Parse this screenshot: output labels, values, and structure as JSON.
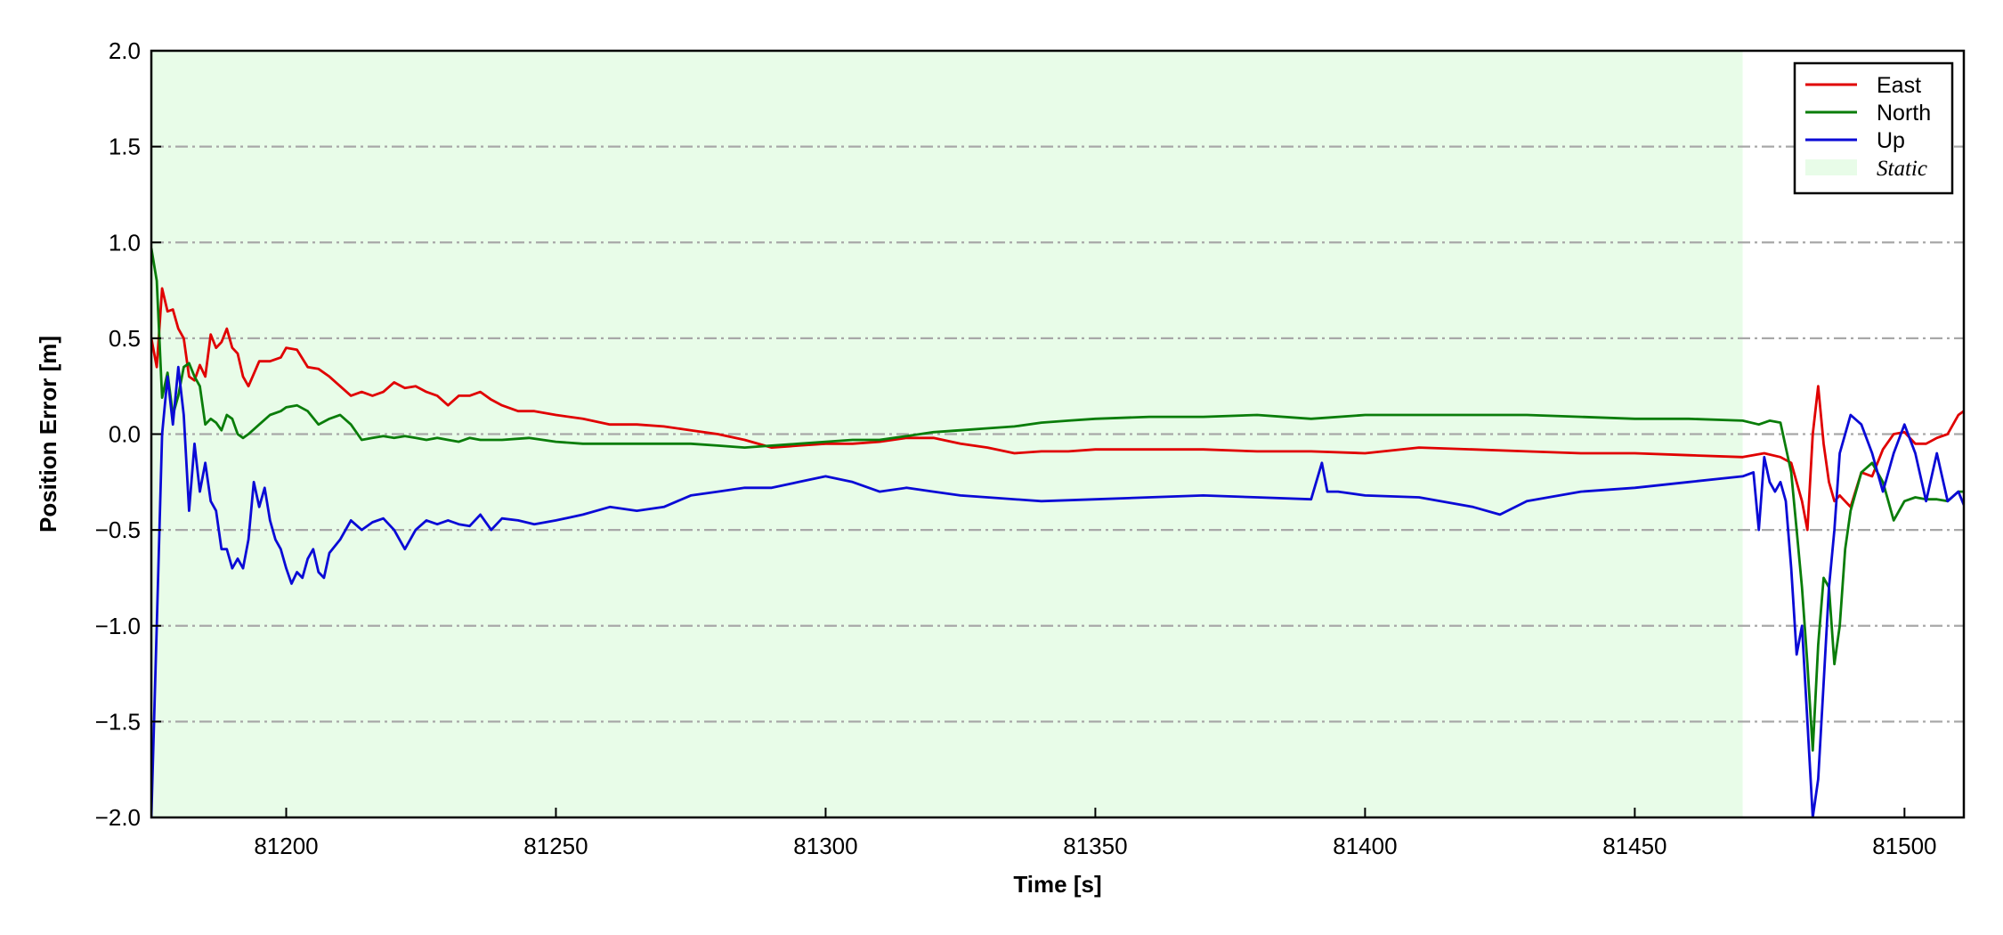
{
  "chart_data": {
    "type": "line",
    "title": "",
    "xlabel": "Time [s]",
    "ylabel": "Position Error [m]",
    "xlim": [
      81175,
      81511
    ],
    "ylim": [
      -2.0,
      2.0
    ],
    "xticks": [
      81200,
      81250,
      81300,
      81350,
      81400,
      81450,
      81500
    ],
    "xtick_labels": [
      "81200",
      "81250",
      "81300",
      "81350",
      "81400",
      "81450",
      "81500"
    ],
    "yticks": [
      2.0,
      1.5,
      1.0,
      0.5,
      0.0,
      -0.5,
      -1.0,
      -1.5,
      -2.0
    ],
    "ytick_labels": [
      "2.0",
      "1.5",
      "1.0",
      "0.5",
      "0.0",
      "−0.5",
      "−1.0",
      "−1.5",
      "−2.0"
    ],
    "grid": "horizontal dash-dot",
    "legend_position": "top-right",
    "static_region": {
      "label": "Static",
      "x_start": 81175,
      "x_end": 81470,
      "color": "#e8fce8"
    },
    "series": [
      {
        "name": "East",
        "color": "#e00000",
        "x": [
          81175,
          81176,
          81177,
          81178,
          81179,
          81180,
          81181,
          81182,
          81183,
          81184,
          81185,
          81186,
          81187,
          81188,
          81189,
          81190,
          81191,
          81192,
          81193,
          81195,
          81197,
          81199,
          81200,
          81202,
          81204,
          81206,
          81208,
          81210,
          81212,
          81214,
          81216,
          81218,
          81220,
          81222,
          81224,
          81226,
          81228,
          81230,
          81232,
          81234,
          81236,
          81238,
          81240,
          81243,
          81246,
          81250,
          81255,
          81260,
          81265,
          81270,
          81275,
          81280,
          81285,
          81290,
          81295,
          81300,
          81305,
          81310,
          81315,
          81320,
          81325,
          81330,
          81335,
          81340,
          81345,
          81350,
          81360,
          81370,
          81380,
          81390,
          81400,
          81410,
          81420,
          81430,
          81440,
          81450,
          81460,
          81470,
          81474,
          81477,
          81479,
          81481,
          81482,
          81483,
          81484,
          81485,
          81486,
          81487,
          81488,
          81490,
          81492,
          81494,
          81496,
          81498,
          81500,
          81502,
          81504,
          81506,
          81508,
          81510,
          81511
        ],
        "y": [
          0.5,
          0.35,
          0.76,
          0.64,
          0.65,
          0.55,
          0.5,
          0.3,
          0.28,
          0.36,
          0.3,
          0.52,
          0.45,
          0.48,
          0.55,
          0.45,
          0.42,
          0.3,
          0.25,
          0.38,
          0.38,
          0.4,
          0.45,
          0.44,
          0.35,
          0.34,
          0.3,
          0.25,
          0.2,
          0.22,
          0.2,
          0.22,
          0.27,
          0.24,
          0.25,
          0.22,
          0.2,
          0.15,
          0.2,
          0.2,
          0.22,
          0.18,
          0.15,
          0.12,
          0.12,
          0.1,
          0.08,
          0.05,
          0.05,
          0.04,
          0.02,
          0.0,
          -0.03,
          -0.07,
          -0.06,
          -0.05,
          -0.05,
          -0.04,
          -0.02,
          -0.02,
          -0.05,
          -0.07,
          -0.1,
          -0.09,
          -0.09,
          -0.08,
          -0.08,
          -0.08,
          -0.09,
          -0.09,
          -0.1,
          -0.07,
          -0.08,
          -0.09,
          -0.1,
          -0.1,
          -0.11,
          -0.12,
          -0.1,
          -0.12,
          -0.15,
          -0.35,
          -0.5,
          0.0,
          0.25,
          -0.05,
          -0.25,
          -0.35,
          -0.32,
          -0.38,
          -0.2,
          -0.22,
          -0.08,
          0.0,
          0.01,
          -0.05,
          -0.05,
          -0.02,
          0.0,
          0.1,
          0.12
        ]
      },
      {
        "name": "North",
        "color": "#0a7d0a",
        "x": [
          81175,
          81176,
          81177,
          81178,
          81179,
          81180,
          81181,
          81182,
          81183,
          81184,
          81185,
          81186,
          81187,
          81188,
          81189,
          81190,
          81191,
          81192,
          81193,
          81195,
          81197,
          81199,
          81200,
          81202,
          81204,
          81206,
          81208,
          81210,
          81212,
          81214,
          81216,
          81218,
          81220,
          81222,
          81224,
          81226,
          81228,
          81230,
          81232,
          81234,
          81236,
          81238,
          81240,
          81245,
          81250,
          81255,
          81260,
          81265,
          81270,
          81275,
          81280,
          81285,
          81290,
          81295,
          81300,
          81305,
          81310,
          81315,
          81320,
          81325,
          81330,
          81335,
          81340,
          81345,
          81350,
          81360,
          81370,
          81380,
          81390,
          81400,
          81410,
          81420,
          81430,
          81440,
          81450,
          81460,
          81470,
          81473,
          81475,
          81477,
          81479,
          81480,
          81481,
          81482,
          81483,
          81484,
          81485,
          81486,
          81487,
          81488,
          81489,
          81490,
          81492,
          81494,
          81496,
          81498,
          81500,
          81502,
          81504,
          81506,
          81508,
          81510,
          81511
        ],
        "y": [
          0.97,
          0.8,
          0.19,
          0.32,
          0.1,
          0.2,
          0.35,
          0.37,
          0.3,
          0.25,
          0.05,
          0.08,
          0.06,
          0.02,
          0.1,
          0.08,
          0.0,
          -0.02,
          0.0,
          0.05,
          0.1,
          0.12,
          0.14,
          0.15,
          0.12,
          0.05,
          0.08,
          0.1,
          0.05,
          -0.03,
          -0.02,
          -0.01,
          -0.02,
          -0.01,
          -0.02,
          -0.03,
          -0.02,
          -0.03,
          -0.04,
          -0.02,
          -0.03,
          -0.03,
          -0.03,
          -0.02,
          -0.04,
          -0.05,
          -0.05,
          -0.05,
          -0.05,
          -0.05,
          -0.06,
          -0.07,
          -0.06,
          -0.05,
          -0.04,
          -0.03,
          -0.03,
          -0.01,
          0.01,
          0.02,
          0.03,
          0.04,
          0.06,
          0.07,
          0.08,
          0.09,
          0.09,
          0.1,
          0.08,
          0.1,
          0.1,
          0.1,
          0.1,
          0.09,
          0.08,
          0.08,
          0.07,
          0.05,
          0.07,
          0.06,
          -0.2,
          -0.5,
          -0.8,
          -1.2,
          -1.65,
          -1.1,
          -0.75,
          -0.8,
          -1.2,
          -1.0,
          -0.6,
          -0.4,
          -0.2,
          -0.15,
          -0.25,
          -0.45,
          -0.35,
          -0.33,
          -0.34,
          -0.34,
          -0.35,
          -0.3,
          -0.3
        ]
      },
      {
        "name": "Up",
        "color": "#0a0ad6",
        "x": [
          81175,
          81176,
          81177,
          81178,
          81179,
          81180,
          81181,
          81182,
          81183,
          81184,
          81185,
          81186,
          81187,
          81188,
          81189,
          81190,
          81191,
          81192,
          81193,
          81194,
          81195,
          81196,
          81197,
          81198,
          81199,
          81200,
          81201,
          81202,
          81203,
          81204,
          81205,
          81206,
          81207,
          81208,
          81210,
          81212,
          81214,
          81216,
          81218,
          81220,
          81222,
          81224,
          81226,
          81228,
          81230,
          81232,
          81234,
          81236,
          81238,
          81240,
          81243,
          81246,
          81250,
          81255,
          81260,
          81265,
          81270,
          81275,
          81280,
          81285,
          81290,
          81295,
          81300,
          81305,
          81310,
          81315,
          81320,
          81325,
          81330,
          81340,
          81350,
          81360,
          81370,
          81380,
          81390,
          81392,
          81393,
          81395,
          81400,
          81410,
          81420,
          81425,
          81430,
          81440,
          81450,
          81460,
          81470,
          81472,
          81473,
          81474,
          81475,
          81476,
          81477,
          81478,
          81479,
          81480,
          81481,
          81482,
          81483,
          81484,
          81485,
          81486,
          81487,
          81488,
          81490,
          81492,
          81494,
          81496,
          81498,
          81500,
          81502,
          81504,
          81506,
          81508,
          81510,
          81511
        ],
        "y": [
          -2.0,
          -1.0,
          0.0,
          0.3,
          0.05,
          0.35,
          0.1,
          -0.4,
          -0.05,
          -0.3,
          -0.15,
          -0.35,
          -0.4,
          -0.6,
          -0.6,
          -0.7,
          -0.65,
          -0.7,
          -0.55,
          -0.25,
          -0.38,
          -0.28,
          -0.45,
          -0.55,
          -0.6,
          -0.7,
          -0.78,
          -0.72,
          -0.75,
          -0.65,
          -0.6,
          -0.72,
          -0.75,
          -0.62,
          -0.55,
          -0.45,
          -0.5,
          -0.46,
          -0.44,
          -0.5,
          -0.6,
          -0.5,
          -0.45,
          -0.47,
          -0.45,
          -0.47,
          -0.48,
          -0.42,
          -0.5,
          -0.44,
          -0.45,
          -0.47,
          -0.45,
          -0.42,
          -0.38,
          -0.4,
          -0.38,
          -0.32,
          -0.3,
          -0.28,
          -0.28,
          -0.25,
          -0.22,
          -0.25,
          -0.3,
          -0.28,
          -0.3,
          -0.32,
          -0.33,
          -0.35,
          -0.34,
          -0.33,
          -0.32,
          -0.33,
          -0.34,
          -0.15,
          -0.3,
          -0.3,
          -0.32,
          -0.33,
          -0.38,
          -0.42,
          -0.35,
          -0.3,
          -0.28,
          -0.25,
          -0.22,
          -0.2,
          -0.5,
          -0.12,
          -0.25,
          -0.3,
          -0.25,
          -0.35,
          -0.7,
          -1.15,
          -1.0,
          -1.5,
          -2.0,
          -1.8,
          -1.3,
          -0.8,
          -0.5,
          -0.1,
          0.1,
          0.05,
          -0.1,
          -0.3,
          -0.1,
          0.05,
          -0.1,
          -0.35,
          -0.1,
          -0.35,
          -0.3,
          -0.37
        ]
      }
    ]
  }
}
